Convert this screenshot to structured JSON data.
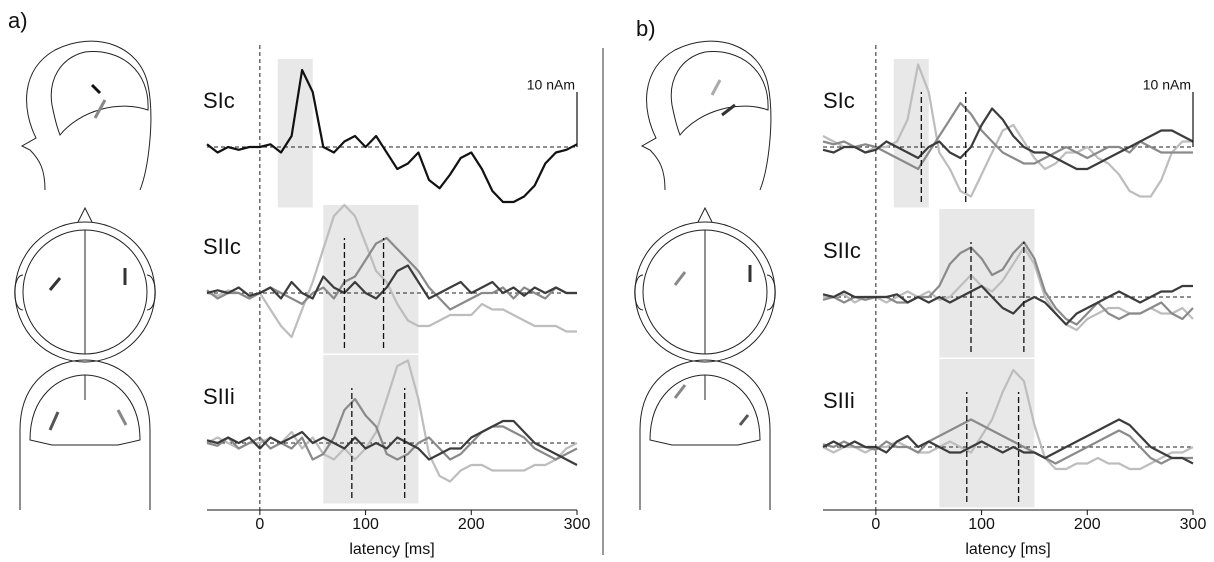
{
  "chart_data": [
    {
      "type": "line",
      "panel_label": "a)",
      "xlabel": "latency [ms]",
      "xlim": [
        -50,
        300
      ],
      "xticks": [
        0,
        100,
        200,
        300
      ],
      "scale_label": "10 nAm",
      "scale_value": 10,
      "x": [
        -50,
        -40,
        -30,
        -20,
        -10,
        0,
        10,
        20,
        30,
        40,
        50,
        60,
        70,
        80,
        90,
        100,
        110,
        120,
        130,
        140,
        150,
        160,
        170,
        180,
        190,
        200,
        210,
        220,
        230,
        240,
        250,
        260,
        270,
        280,
        290,
        300
      ],
      "rows": [
        {
          "label": "SIc",
          "ylim": [
            -11,
            16
          ],
          "shade": [
            17,
            50
          ],
          "markers": [],
          "series": [
            {
              "color": "#111111",
              "values": [
                0.5,
                -1,
                0,
                -0.5,
                0,
                0,
                0.5,
                -1,
                2,
                14,
                10,
                0,
                -1,
                1,
                2,
                0,
                2,
                -1,
                -4,
                -3,
                -1,
                -6,
                -7.5,
                -5,
                -2,
                -1,
                -4,
                -8,
                -10,
                -10,
                -9,
                -7,
                -3,
                -1,
                -0.5,
                0.5
              ]
            }
          ]
        },
        {
          "label": "SIIc",
          "ylim": [
            -11,
            16
          ],
          "shade": [
            60,
            150
          ],
          "markers": [
            80,
            117
          ],
          "series": [
            {
              "color": "#bdbdbd",
              "values": [
                0,
                -0.5,
                0.5,
                0,
                -1,
                0,
                -3,
                -6,
                -8,
                -3,
                2,
                8,
                14,
                16,
                14,
                9,
                4,
                2,
                -2,
                -5,
                -6,
                -6,
                -5,
                -4,
                -4,
                -4,
                -2,
                -3,
                -3,
                -4,
                -5,
                -6,
                -6,
                -6,
                -7,
                -7
              ]
            },
            {
              "color": "#8a8a8a",
              "values": [
                0.5,
                -1,
                0,
                0,
                -1,
                0,
                1,
                0,
                -1,
                -2,
                0,
                1,
                -1,
                2,
                3,
                6,
                9,
                10,
                8,
                6,
                4,
                1,
                -1,
                -3,
                -2,
                -1,
                0,
                0,
                1,
                -1,
                1,
                0,
                -1,
                1,
                0,
                0
              ]
            },
            {
              "color": "#3c3c3c",
              "values": [
                0,
                0.5,
                0,
                1,
                -0.5,
                0,
                1,
                -1,
                2,
                0,
                -1,
                3,
                1,
                0,
                2,
                0,
                -1,
                1,
                4,
                5,
                2,
                -1,
                0,
                1,
                2,
                0,
                1,
                2,
                0,
                1,
                -0.5,
                1,
                0,
                1,
                0,
                0
              ]
            }
          ]
        },
        {
          "label": "SIIi",
          "ylim": [
            -11,
            16
          ],
          "shade": [
            60,
            150
          ],
          "markers": [
            87,
            137
          ],
          "series": [
            {
              "color": "#bdbdbd",
              "values": [
                0,
                1,
                0,
                -1,
                0,
                0,
                1,
                0,
                2,
                -1,
                1,
                -2,
                -3,
                -1,
                -3,
                -1,
                2,
                8,
                14,
                15,
                8,
                -2,
                -6,
                -7,
                -5,
                -4,
                -4,
                -5,
                -5,
                -5,
                -5,
                -4,
                -4,
                -3,
                -1,
                0
              ]
            },
            {
              "color": "#8a8a8a",
              "values": [
                0,
                -0.5,
                1,
                -1,
                0,
                1,
                -1,
                0,
                -1,
                1,
                -3,
                -2,
                1,
                6,
                8,
                5,
                3,
                -2,
                -3,
                -2,
                0,
                1,
                -1,
                -3,
                -2,
                0,
                2,
                3,
                3,
                2,
                1,
                -1,
                -2,
                -3,
                -2,
                -1
              ]
            },
            {
              "color": "#3c3c3c",
              "values": [
                0.5,
                0,
                1,
                0,
                1,
                -1,
                1,
                0,
                1,
                2,
                0,
                1,
                0,
                -1,
                1,
                -1,
                0,
                -1,
                1,
                0,
                -1,
                -3,
                -2,
                -1,
                -1,
                1,
                2,
                3,
                4,
                4,
                2,
                0,
                -1,
                -2,
                -3,
                -4
              ]
            }
          ]
        }
      ]
    },
    {
      "type": "line",
      "panel_label": "b)",
      "xlabel": "latency [ms]",
      "xlim": [
        -50,
        300
      ],
      "xticks": [
        0,
        100,
        200,
        300
      ],
      "scale_label": "10 nAm",
      "scale_value": 10,
      "x": [
        -50,
        -40,
        -30,
        -20,
        -10,
        0,
        10,
        20,
        30,
        40,
        50,
        60,
        70,
        80,
        90,
        100,
        110,
        120,
        130,
        140,
        150,
        160,
        170,
        180,
        190,
        200,
        210,
        220,
        230,
        240,
        250,
        260,
        270,
        280,
        290,
        300
      ],
      "rows": [
        {
          "label": "SIc",
          "ylim": [
            -11,
            16
          ],
          "shade": [
            17,
            50
          ],
          "markers": [
            43,
            85
          ],
          "series": [
            {
              "color": "#bdbdbd",
              "values": [
                2,
                1,
                0,
                0,
                -1,
                0,
                0,
                1,
                5,
                15,
                10,
                -1,
                -4,
                -8,
                -9,
                -5,
                -1,
                3,
                4,
                1,
                -2,
                -4,
                -3,
                -1,
                -1,
                0,
                -2,
                -3,
                -5,
                -8,
                -9,
                -9,
                -6,
                -1,
                1,
                1
              ]
            },
            {
              "color": "#8a8a8a",
              "values": [
                1,
                0.5,
                1,
                0,
                0.5,
                0,
                -1,
                -2,
                -3,
                -4,
                -1,
                2,
                5,
                8,
                6,
                3,
                1,
                -1,
                -2,
                -3,
                -3,
                -2,
                -1,
                0,
                -1,
                -2,
                -1,
                0,
                0,
                -1,
                1,
                0,
                -1,
                -1,
                -1,
                -1
              ]
            },
            {
              "color": "#3c3c3c",
              "values": [
                -0.5,
                -1,
                0,
                0,
                -1,
                -0.5,
                1,
                0,
                -1,
                -2,
                0,
                1,
                -1,
                -2,
                0,
                4,
                7,
                5,
                2,
                0,
                -1,
                -1,
                -2,
                -3,
                -4,
                -4,
                -3,
                -2,
                -1,
                0,
                1,
                2,
                3,
                3,
                2,
                1
              ]
            }
          ]
        },
        {
          "label": "SIIc",
          "ylim": [
            -11,
            16
          ],
          "shade": [
            60,
            150
          ],
          "markers": [
            90,
            140
          ],
          "series": [
            {
              "color": "#bdbdbd",
              "values": [
                0,
                0,
                0.5,
                -1,
                0,
                0,
                -1,
                0,
                1,
                0,
                1,
                -0.5,
                0,
                2,
                4,
                2,
                1,
                3,
                6,
                9,
                6,
                0,
                -3,
                -5,
                -6,
                -4,
                -3,
                -2,
                -2,
                -3,
                -3,
                -2,
                -3,
                -3,
                -2,
                -4
              ]
            },
            {
              "color": "#8a8a8a",
              "values": [
                -0.5,
                0,
                -1,
                0,
                -0.5,
                0,
                0,
                -1,
                -1,
                0,
                0,
                2,
                6,
                8,
                9,
                7,
                4,
                5,
                8,
                10,
                7,
                1,
                -2,
                -4,
                -5,
                -3,
                -1,
                -3,
                -4,
                -3,
                -3,
                -2,
                -1,
                -3,
                -4,
                -2
              ]
            },
            {
              "color": "#3c3c3c",
              "values": [
                0.5,
                0,
                1,
                0,
                0,
                0,
                0,
                0.5,
                -1,
                0,
                -1,
                0,
                -1,
                0,
                1,
                2,
                0,
                -2,
                -3,
                -1,
                0,
                -1,
                -3,
                -5,
                -3,
                -2,
                -1,
                0,
                1,
                0,
                -1,
                0,
                1,
                1,
                2,
                2
              ]
            }
          ]
        },
        {
          "label": "SIIi",
          "ylim": [
            -11,
            16
          ],
          "shade": [
            60,
            150
          ],
          "markers": [
            86,
            135
          ],
          "series": [
            {
              "color": "#bdbdbd",
              "values": [
                0,
                -1,
                0,
                0,
                -1,
                0,
                0,
                1,
                0,
                -1,
                -1,
                0,
                1,
                0,
                -1,
                2,
                5,
                10,
                14,
                12,
                4,
                -2,
                -4,
                -4,
                -3,
                -3,
                -2,
                -3,
                -3,
                -4,
                -4,
                -3,
                -2,
                -1,
                -1,
                0
              ]
            },
            {
              "color": "#8a8a8a",
              "values": [
                0.5,
                0,
                1,
                0,
                0,
                -0.5,
                1,
                0,
                0,
                -1,
                1,
                2,
                3,
                4,
                5,
                4,
                3,
                2,
                1,
                0,
                -1,
                -2,
                -3,
                -2,
                -1,
                0,
                1,
                2,
                3,
                2,
                0,
                -2,
                -3,
                -2,
                -2,
                -2
              ]
            },
            {
              "color": "#3c3c3c",
              "values": [
                0,
                1,
                0,
                1,
                0,
                0,
                -1,
                1,
                2,
                0,
                1,
                0,
                -1,
                -1,
                0,
                1,
                0,
                -1,
                0,
                -1,
                -1,
                -2,
                -1,
                0,
                1,
                2,
                3,
                4,
                5,
                4,
                2,
                0,
                -1,
                -2,
                -2,
                -3
              ]
            }
          ]
        }
      ]
    }
  ]
}
